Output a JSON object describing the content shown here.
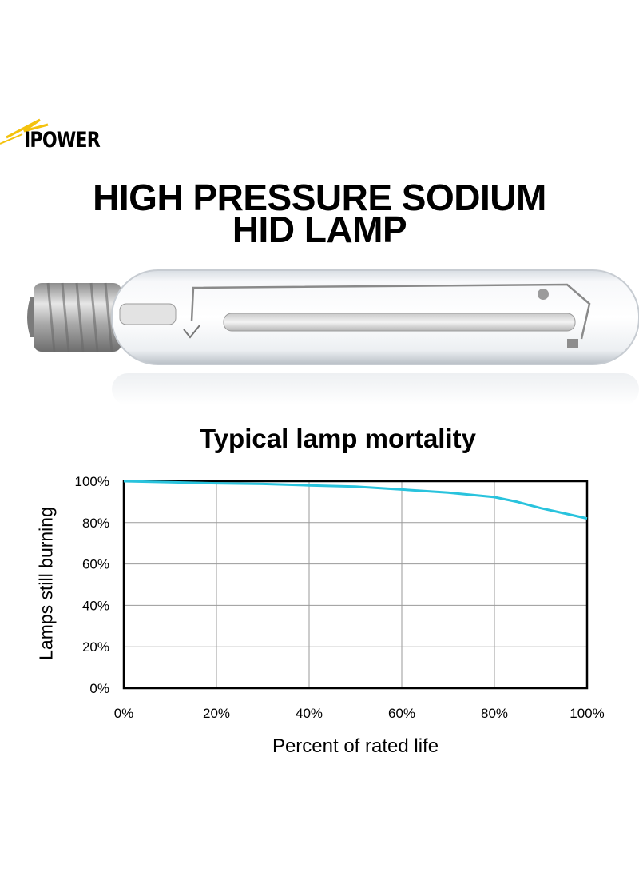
{
  "brand": {
    "name": "IPOWER"
  },
  "headline": {
    "line1": "HIGH PRESSURE SODIUM",
    "line2": "HID LAMP"
  },
  "colors": {
    "series": "#29c3dd",
    "grid": "#9a9a9a",
    "frame": "#000000"
  },
  "chart_data": {
    "type": "line",
    "title": "Typical lamp mortality",
    "xlabel": "Percent of rated life",
    "ylabel": "Lamps still burning",
    "xlim": [
      0,
      100
    ],
    "ylim": [
      0,
      100
    ],
    "x_ticks": [
      0,
      20,
      40,
      60,
      80,
      100
    ],
    "y_ticks": [
      0,
      20,
      40,
      60,
      80,
      100
    ],
    "x_tick_labels": [
      "0%",
      "20%",
      "40%",
      "60%",
      "80%",
      "100%"
    ],
    "y_tick_labels": [
      "0%",
      "20%",
      "40%",
      "60%",
      "80%",
      "100%"
    ],
    "grid": true,
    "legend": "none",
    "series": [
      {
        "x": [
          0,
          10,
          20,
          30,
          40,
          50,
          60,
          70,
          80,
          85,
          90,
          95,
          100
        ],
        "values": [
          100,
          99.5,
          99,
          98.7,
          98,
          97.4,
          96,
          94.5,
          92.3,
          90,
          87,
          84.5,
          82
        ]
      }
    ]
  }
}
